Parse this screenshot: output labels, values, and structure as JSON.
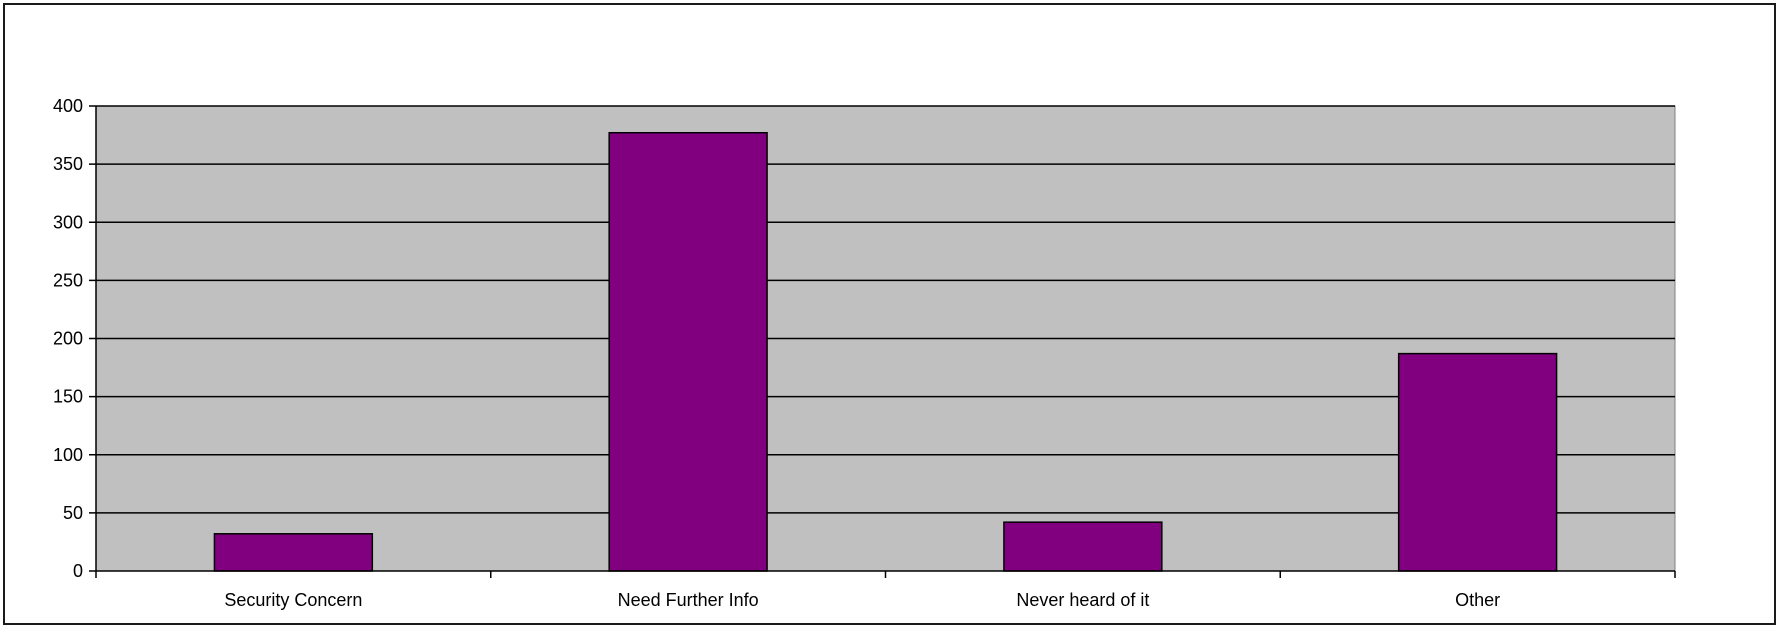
{
  "chart_data": {
    "type": "bar",
    "categories": [
      "Security Concern",
      "Need Further Info",
      "Never heard of it",
      "Other"
    ],
    "values": [
      32,
      377,
      42,
      187
    ],
    "title": "",
    "xlabel": "",
    "ylabel": "",
    "ylim": [
      0,
      400
    ],
    "yticks": [
      0,
      50,
      100,
      150,
      200,
      250,
      300,
      350,
      400
    ],
    "grid": true,
    "legend": "none",
    "colors": {
      "bar": "#800080",
      "plot_background": "#c0c0c0",
      "gridline": "#000000",
      "frame_border": "#1a1a1a"
    }
  }
}
